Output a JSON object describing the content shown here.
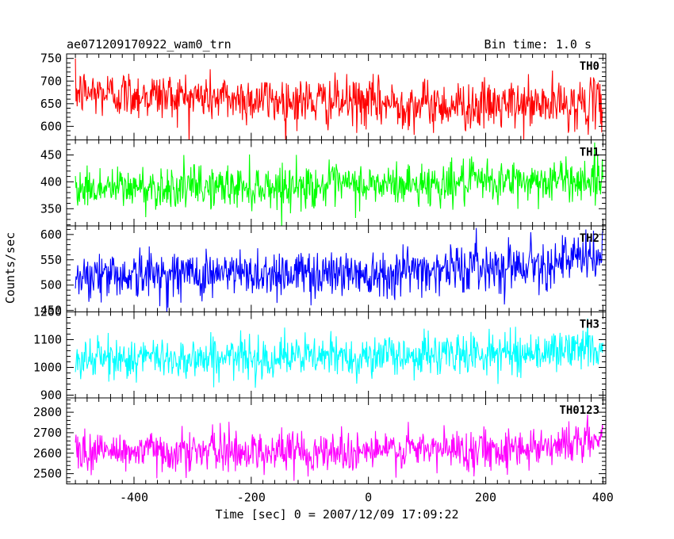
{
  "header": {
    "title": "ae071209170922_wam0_trn",
    "bin_time": "Bin time: 1.0 s"
  },
  "chart_data": {
    "type": "line",
    "layout": "stacked panels, shared x axis",
    "xlabel": "Time [sec] 0 = 2007/12/09 17:09:22",
    "ylabel": "Counts/sec",
    "xlim": [
      -515,
      405
    ],
    "xticks": [
      -400,
      -200,
      0,
      200,
      400
    ],
    "bin_time_s": 1.0,
    "x_start": -500,
    "x_end": 400,
    "panels": [
      {
        "name": "TH0",
        "color": "#ff0000",
        "ylim": [
          570,
          760
        ],
        "yticks": [
          600,
          650,
          700,
          750
        ],
        "trend": [
          {
            "x": -500,
            "y": 675
          },
          {
            "x": -100,
            "y": 655
          },
          {
            "x": 200,
            "y": 645
          },
          {
            "x": 400,
            "y": 650
          }
        ],
        "noise_sd": 27
      },
      {
        "name": "TH1",
        "color": "#00ff00",
        "ylim": [
          318,
          478
        ],
        "yticks": [
          350,
          400,
          450
        ],
        "trend": [
          {
            "x": -500,
            "y": 388
          },
          {
            "x": 0,
            "y": 393
          },
          {
            "x": 400,
            "y": 405
          }
        ],
        "noise_sd": 20
      },
      {
        "name": "TH2",
        "color": "#0000ff",
        "ylim": [
          447,
          617
        ],
        "yticks": [
          450,
          500,
          550,
          600
        ],
        "trend": [
          {
            "x": -500,
            "y": 520
          },
          {
            "x": 0,
            "y": 525
          },
          {
            "x": 250,
            "y": 540
          },
          {
            "x": 400,
            "y": 555
          }
        ],
        "noise_sd": 24
      },
      {
        "name": "TH3",
        "color": "#00ffff",
        "ylim": [
          890,
          1200
        ],
        "yticks": [
          900,
          1000,
          1100,
          1200
        ],
        "trend": [
          {
            "x": -500,
            "y": 1030
          },
          {
            "x": 0,
            "y": 1040
          },
          {
            "x": 300,
            "y": 1055
          },
          {
            "x": 400,
            "y": 1075
          }
        ],
        "noise_sd": 37
      },
      {
        "name": "TH0123",
        "color": "#ff00ff",
        "ylim": [
          2450,
          2870
        ],
        "yticks": [
          2500,
          2600,
          2700,
          2800
        ],
        "trend": [
          {
            "x": -500,
            "y": 2610
          },
          {
            "x": 0,
            "y": 2610
          },
          {
            "x": 250,
            "y": 2625
          },
          {
            "x": 400,
            "y": 2665
          }
        ],
        "noise_sd": 50
      }
    ]
  }
}
